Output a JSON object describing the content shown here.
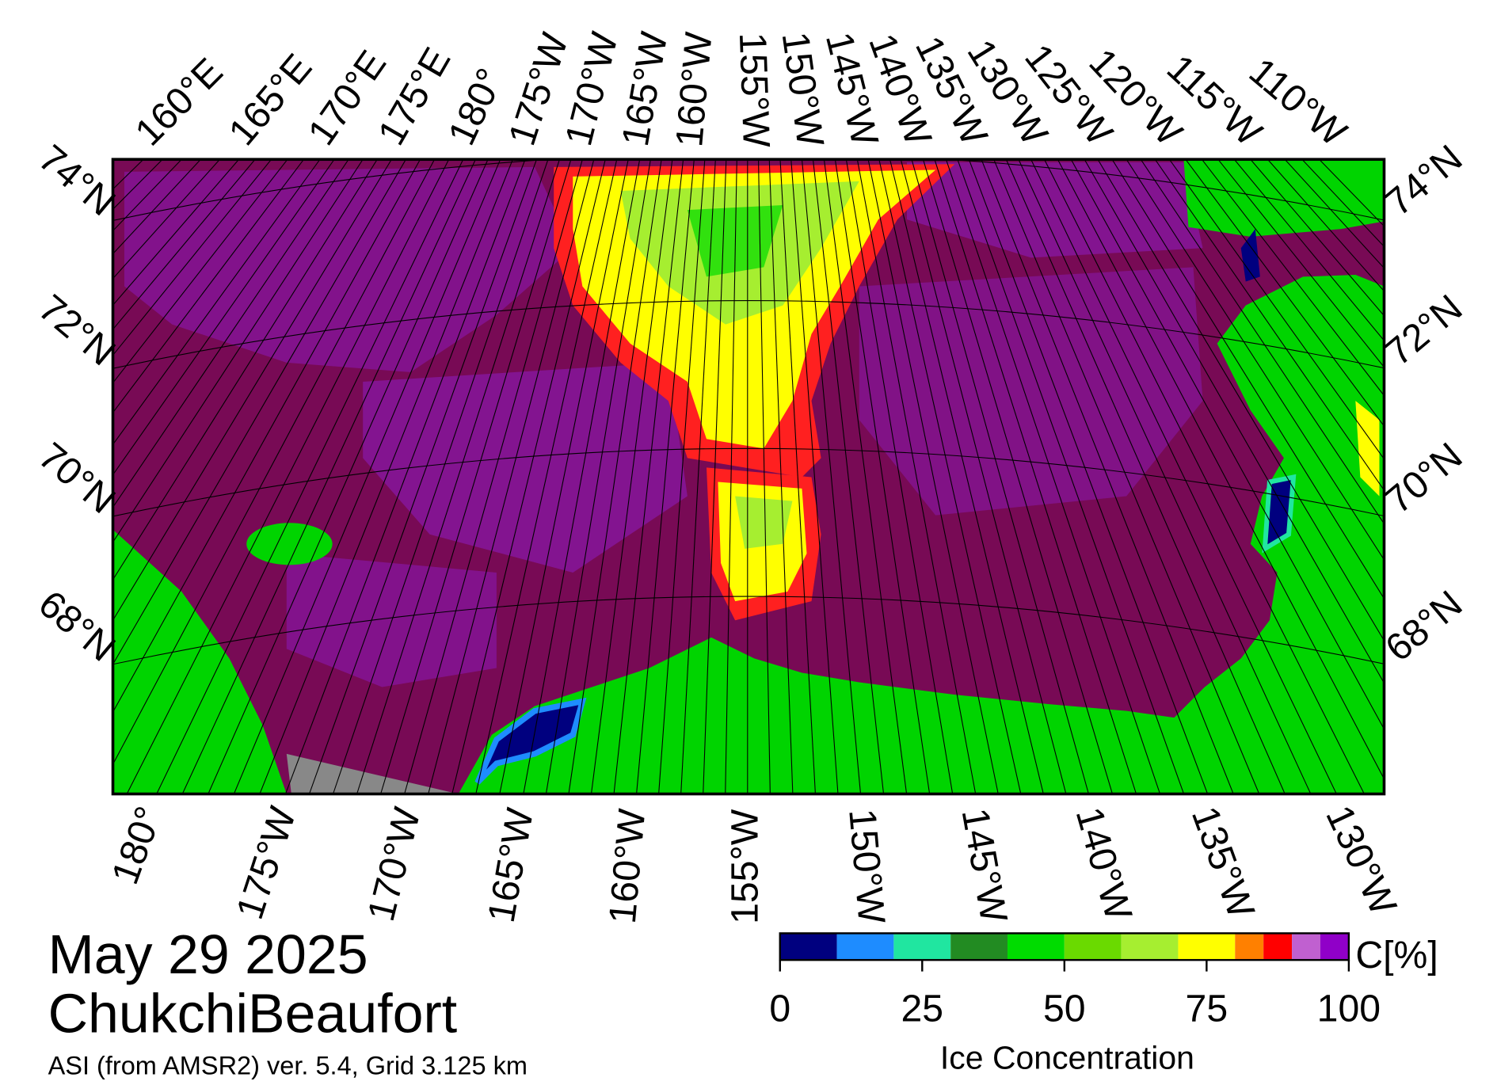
{
  "map": {
    "top_lon_labels": [
      "160°E",
      "165°E",
      "170°E",
      "175°E",
      "180°",
      "175°W",
      "170°W",
      "165°W",
      "160°W",
      "155°W",
      "150°W",
      "145°W",
      "140°W",
      "135°W",
      "130°W",
      "125°W",
      "120°W",
      "115°W",
      "110°W"
    ],
    "bottom_lon_labels": [
      "180°",
      "175°W",
      "170°W",
      "165°W",
      "160°W",
      "155°W",
      "150°W",
      "145°W",
      "140°W",
      "135°W",
      "130°W"
    ],
    "left_lat_labels": [
      "74°N",
      "72°N",
      "70°N",
      "68°N"
    ],
    "right_lat_labels": [
      "74°N",
      "72°N",
      "70°N",
      "68°N"
    ]
  },
  "info": {
    "date": "May 29 2025",
    "region": "ChukchiBeaufort",
    "source": "ASI (from AMSR2) ver. 5.4,  Grid 3.125 km"
  },
  "colorbar": {
    "label": "Ice Concentration",
    "unit": "C[%]",
    "bins": [
      0,
      10,
      20,
      30,
      40,
      50,
      60,
      70,
      80,
      85,
      90,
      95,
      100
    ],
    "colors": [
      "#00007f",
      "#1e8cff",
      "#20e6a0",
      "#228b22",
      "#00dc00",
      "#6ada00",
      "#a6ee30",
      "#ffff00",
      "#ff8000",
      "#ff0000",
      "#c060d0",
      "#9000c8"
    ],
    "ticks": [
      0,
      25,
      50,
      75,
      100
    ]
  }
}
